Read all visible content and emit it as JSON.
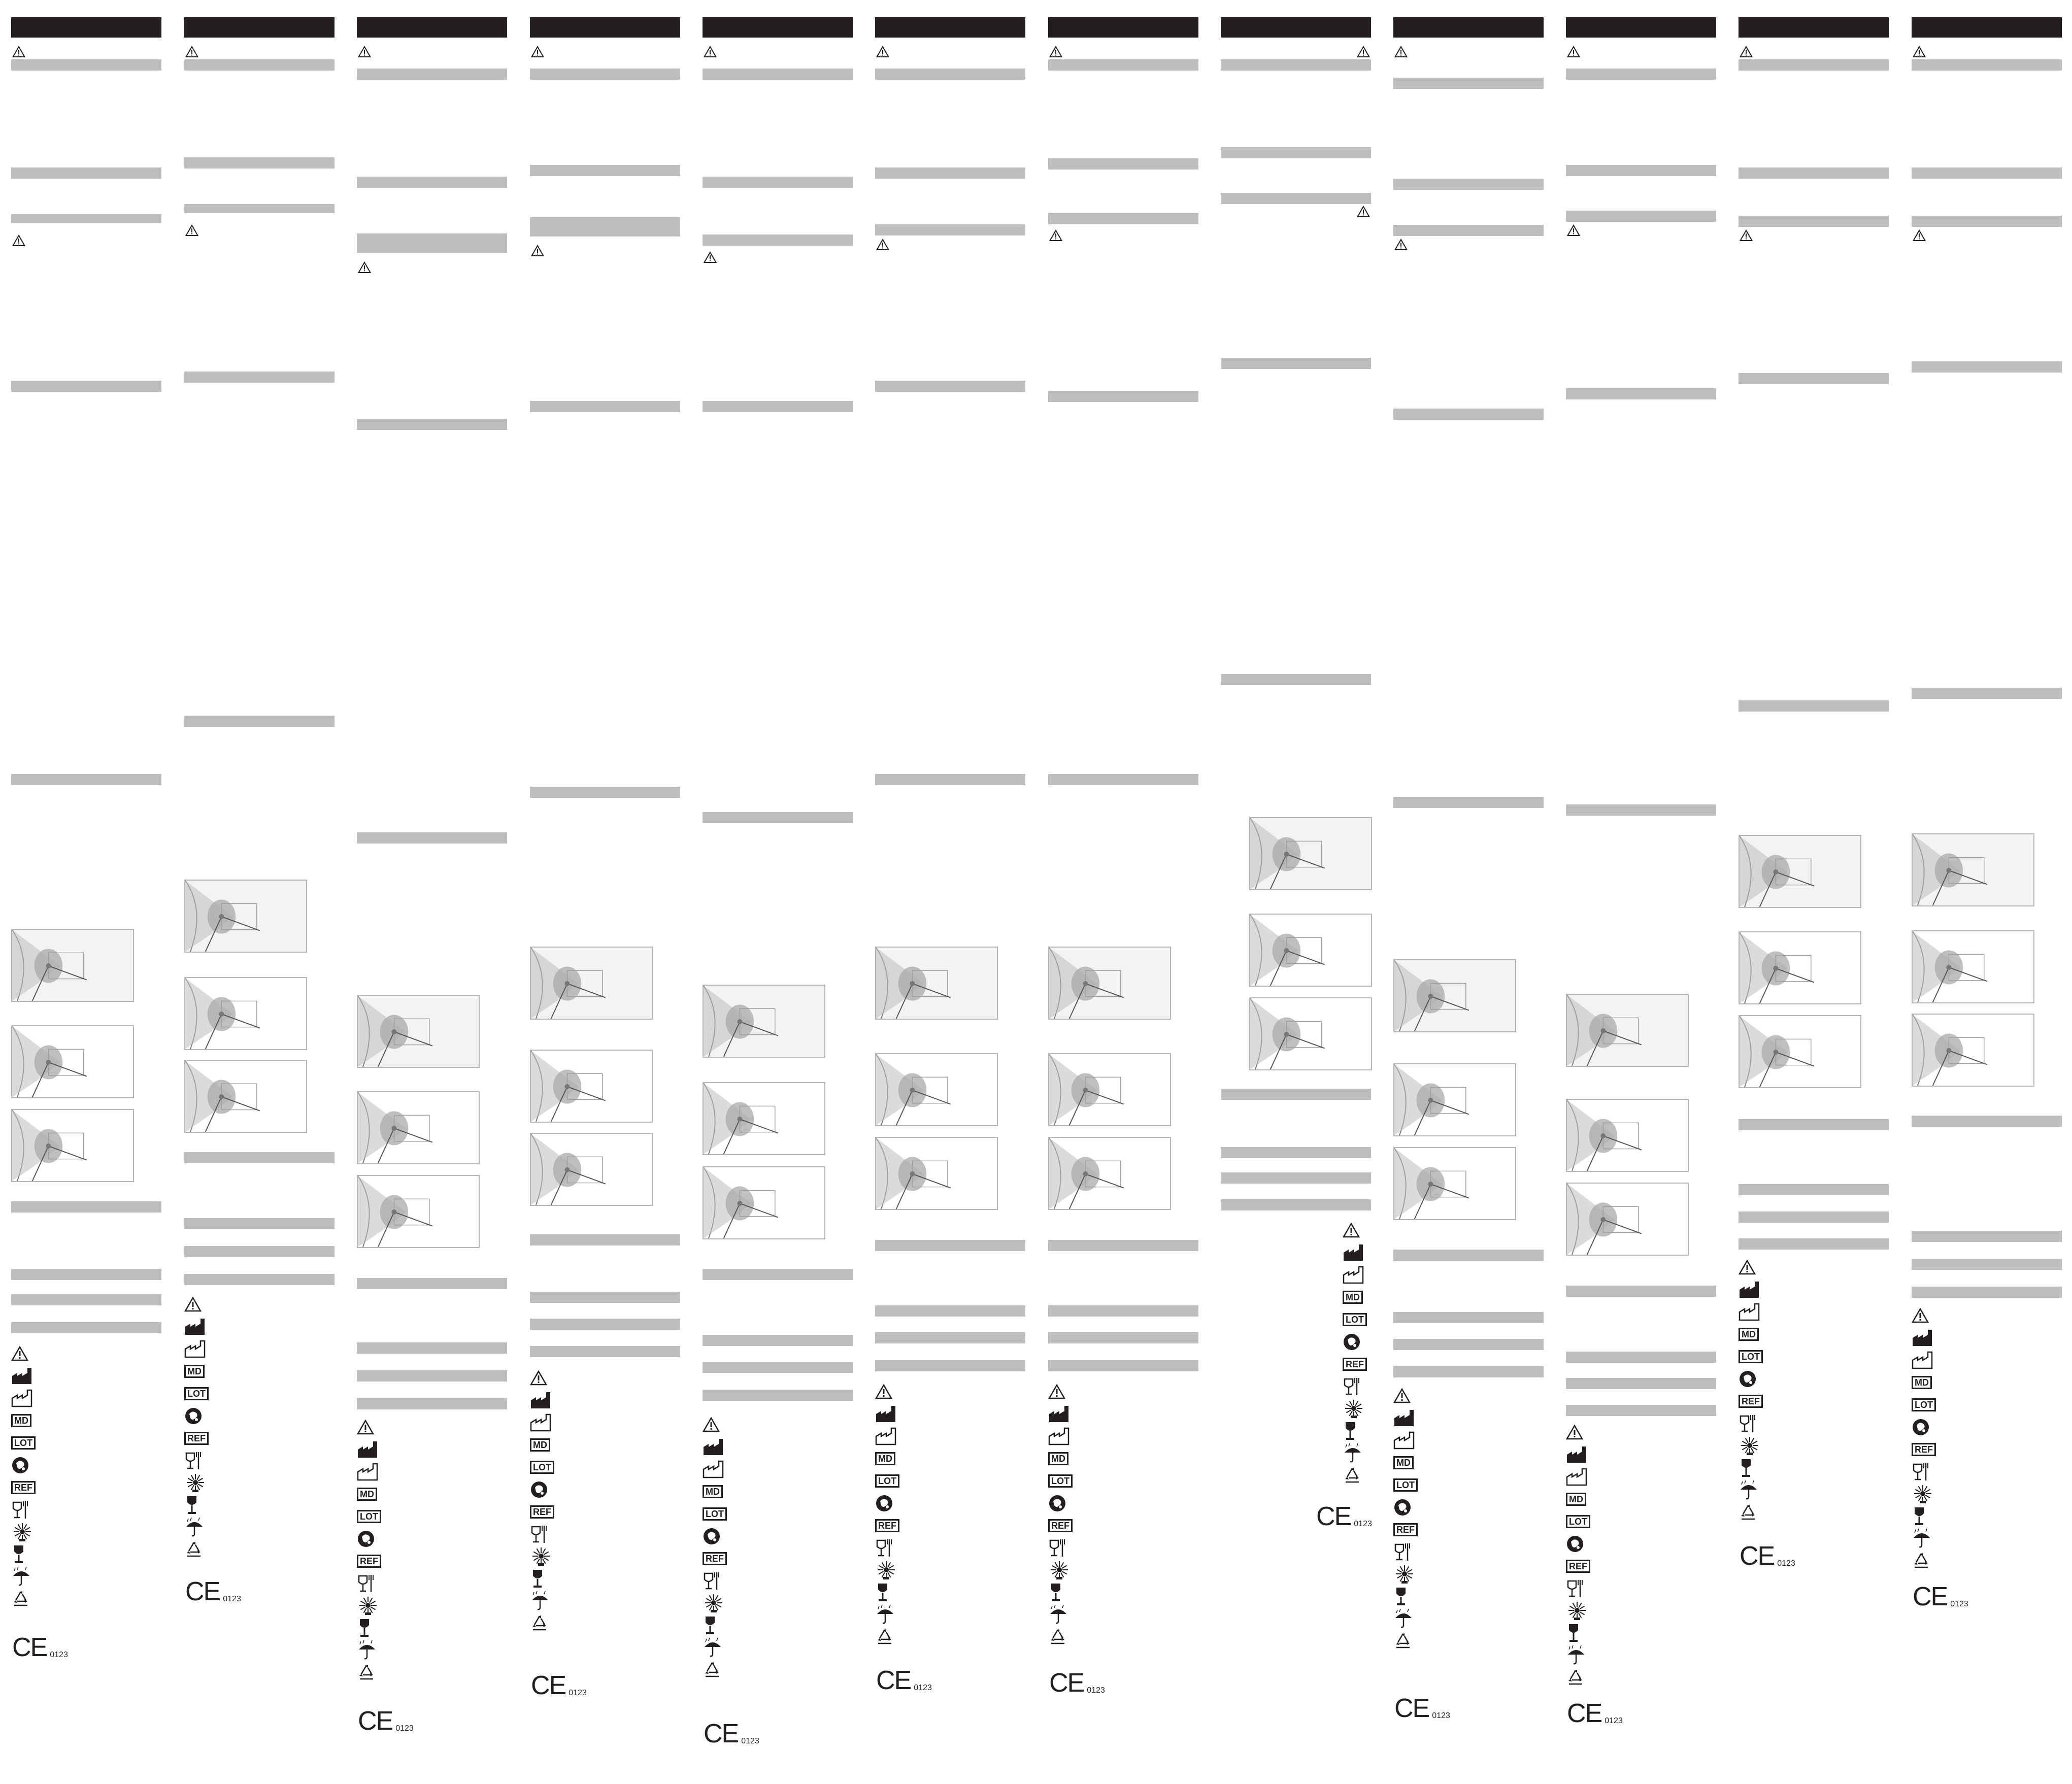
{
  "document": {
    "colors": {
      "header": "#231f20",
      "bar": "#bdbdbd",
      "figure_border": "#b5b5b5",
      "figure_shaded": "#f3f3f3",
      "ink": "#231f20"
    },
    "symbols": [
      {
        "name": "caution-icon",
        "kind": "warning"
      },
      {
        "name": "manufacturer-icon",
        "kind": "factory-filled"
      },
      {
        "name": "date-of-manufacture-icon",
        "kind": "factory-outline"
      },
      {
        "name": "medical-device-icon",
        "kind": "box",
        "label": "MD"
      },
      {
        "name": "lot-number-icon",
        "kind": "box",
        "label": "LOT"
      },
      {
        "name": "latex-free-icon",
        "kind": "badge"
      },
      {
        "name": "reference-number-icon",
        "kind": "box",
        "label": "REF"
      },
      {
        "name": "food-safe-icon",
        "kind": "glass-fork"
      },
      {
        "name": "keep-away-from-sunlight-icon",
        "kind": "sun"
      },
      {
        "name": "fragile-icon",
        "kind": "glass"
      },
      {
        "name": "keep-dry-icon",
        "kind": "umbrella"
      },
      {
        "name": "recyclable-icon",
        "kind": "recycle"
      }
    ],
    "ce_mark": {
      "letters": "CE",
      "notified_body": "0123"
    }
  }
}
